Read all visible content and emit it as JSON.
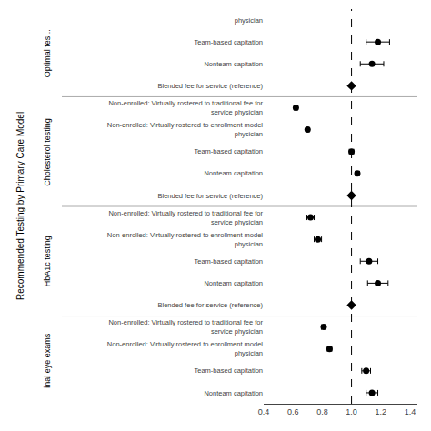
{
  "chart_data": {
    "type": "forest",
    "ylabel": "Recommended Testing by Primary Care Model",
    "categories": [
      "physician",
      "Team-based capitation",
      "Nonteam capitation",
      "Blended fee for service (reference)",
      "Non-enrolled: Virtually rostered to traditional fee for\nservice physician",
      "Non-enrolled: Virtually rostered to enrollment model\nphysician",
      "Team-based capitation",
      "Nonteam capitation",
      "Blended fee for service (reference)",
      "Non-enrolled: Virtually rostered to traditional fee for\nservice physician",
      "Non-enrolled: Virtually rostered to enrollment model\nphysician",
      "Team-based capitation",
      "Nonteam capitation",
      "Blended fee for service (reference)",
      "Non-enrolled: Virtually rostered to traditional fee for\nservice physician",
      "Non-enrolled: Virtually rostered to enrollment model\nphysician",
      "Team-based capitation",
      "Nonteam capitation"
    ],
    "groups": [
      "Optimal tes...",
      "Optimal tes...",
      "Optimal tes...",
      "Optimal tes...",
      "Cholesterol testing",
      "Cholesterol testing",
      "Cholesterol testing",
      "Cholesterol testing",
      "Cholesterol testing",
      "HbA1c testing",
      "HbA1c testing",
      "HbA1c testing",
      "HbA1c testing",
      "HbA1c testing",
      "inal eye exams",
      "inal eye exams",
      "inal eye exams",
      "inal eye exams"
    ],
    "series": [
      {
        "marker": "circle",
        "values": [
          null,
          1.18,
          1.14,
          null,
          0.62,
          0.7,
          1.0,
          1.04,
          null,
          0.72,
          0.77,
          1.12,
          1.18,
          null,
          0.81,
          0.85,
          1.1,
          1.14
        ],
        "error_minus": [
          null,
          0.08,
          0.08,
          null,
          0.01,
          0.01,
          0.015,
          0.015,
          null,
          0.025,
          0.025,
          0.06,
          0.07,
          null,
          0.015,
          0.015,
          0.03,
          0.04
        ],
        "error_plus": [
          null,
          0.08,
          0.08,
          null,
          0.01,
          0.01,
          0.015,
          0.015,
          null,
          0.025,
          0.025,
          0.06,
          0.07,
          null,
          0.015,
          0.015,
          0.03,
          0.04
        ]
      },
      {
        "marker": "diamond",
        "values": [
          null,
          null,
          null,
          1.0,
          null,
          null,
          null,
          null,
          1.0,
          null,
          null,
          null,
          null,
          1.0,
          null,
          null,
          null,
          null
        ],
        "error_minus": [
          null,
          null,
          null,
          0.0,
          null,
          null,
          null,
          null,
          0.0,
          null,
          null,
          null,
          null,
          0.0,
          null,
          null,
          null,
          null
        ],
        "error_plus": [
          null,
          null,
          null,
          0.0,
          null,
          null,
          null,
          null,
          0.0,
          null,
          null,
          null,
          null,
          0.0,
          null,
          null,
          null,
          null
        ]
      }
    ],
    "reference_x": 1.0,
    "color": "#000000",
    "xlim": [
      0.4,
      1.45
    ],
    "xticks": [
      0.4,
      0.6,
      0.8,
      {
        "value": 1,
        "label": "1.0"
      },
      1.2,
      1.4
    ],
    "grid": false
  }
}
